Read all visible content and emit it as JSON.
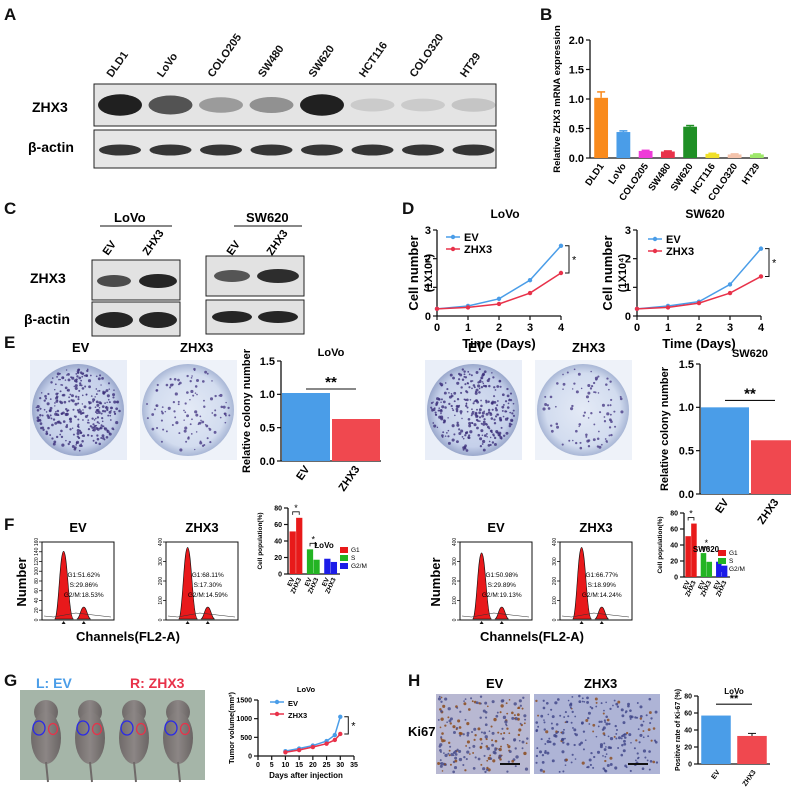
{
  "panel_letters": [
    "A",
    "B",
    "C",
    "D",
    "E",
    "F",
    "G",
    "H"
  ],
  "a": {
    "lanes": [
      "DLD1",
      "LoVo",
      "COLO205",
      "SW480",
      "SW620",
      "HCT116",
      "COLO320",
      "HT29"
    ],
    "rows": [
      "ZHX3",
      "β-actin"
    ],
    "zhx3_intensity": [
      0.95,
      0.7,
      0.35,
      0.4,
      0.95,
      0.1,
      0.08,
      0.15
    ]
  },
  "chart_data": [
    {
      "id": "B",
      "type": "bar",
      "categories": [
        "DLD1",
        "LoVo",
        "COLO205",
        "SW480",
        "SW620",
        "HCT116",
        "COLO320",
        "HT29"
      ],
      "values": [
        1.02,
        0.44,
        0.12,
        0.11,
        0.53,
        0.07,
        0.06,
        0.06
      ],
      "errors": [
        0.1,
        0.02,
        0.01,
        0.01,
        0.02,
        0.01,
        0.01,
        0.01
      ],
      "colors": [
        "#f98a1c",
        "#4a9de8",
        "#ee3bd8",
        "#e8324a",
        "#1f8f25",
        "#f0e02a",
        "#f4c3ab",
        "#9ee86a"
      ],
      "ylabel": "Relative ZHX3 mRNA expression",
      "yticks": [
        "0.0",
        "0.5",
        "1.0",
        "1.5",
        "2.0"
      ],
      "ylim": [
        0,
        2
      ]
    },
    {
      "id": "D1",
      "type": "line",
      "title": "LoVo",
      "x": [
        0,
        1,
        2,
        3,
        4
      ],
      "series": [
        {
          "name": "EV",
          "values": [
            0.25,
            0.35,
            0.6,
            1.25,
            2.45
          ],
          "color": "#4a9de8"
        },
        {
          "name": "ZHX3",
          "values": [
            0.25,
            0.3,
            0.42,
            0.8,
            1.5
          ],
          "color": "#e8324a"
        }
      ],
      "xticks": [
        "0",
        "1",
        "2",
        "3",
        "4"
      ],
      "yticks": [
        "0",
        "1",
        "2",
        "3"
      ],
      "xlabel": "Time (Days)",
      "ylabel": "Cell number",
      "ylabel2": "(1X10⁴)",
      "xlim": [
        0,
        4
      ],
      "ylim": [
        0,
        3
      ],
      "sig": "*"
    },
    {
      "id": "D2",
      "type": "line",
      "title": "SW620",
      "x": [
        0,
        1,
        2,
        3,
        4
      ],
      "series": [
        {
          "name": "EV",
          "values": [
            0.25,
            0.35,
            0.5,
            1.1,
            2.35
          ],
          "color": "#4a9de8"
        },
        {
          "name": "ZHX3",
          "values": [
            0.25,
            0.3,
            0.45,
            0.8,
            1.38
          ],
          "color": "#e8324a"
        }
      ],
      "xticks": [
        "0",
        "1",
        "2",
        "3",
        "4"
      ],
      "yticks": [
        "0",
        "1",
        "2",
        "3"
      ],
      "xlabel": "Time (Days)",
      "ylabel": "Cell number",
      "ylabel2": "(1X10⁴)",
      "xlim": [
        0,
        4
      ],
      "ylim": [
        0,
        3
      ],
      "sig": "*"
    },
    {
      "id": "E1",
      "type": "bar",
      "title": "LoVo",
      "categories": [
        "EV",
        "ZHX3"
      ],
      "values": [
        1.02,
        0.63
      ],
      "colors": [
        "#4a9de8",
        "#f0484f"
      ],
      "ylabel": "Relative colony number",
      "yticks": [
        "0.0",
        "0.5",
        "1.0",
        "1.5"
      ],
      "ylim": [
        0,
        1.5
      ],
      "sig": "**"
    },
    {
      "id": "E2",
      "type": "bar",
      "title": "SW620",
      "categories": [
        "EV",
        "ZHX3"
      ],
      "values": [
        1.0,
        0.62
      ],
      "colors": [
        "#4a9de8",
        "#f0484f"
      ],
      "ylabel": "Relative colony number",
      "yticks": [
        "0.0",
        "0.5",
        "1.0",
        "1.5"
      ],
      "ylim": [
        0,
        1.5
      ],
      "sig": "**"
    },
    {
      "id": "F1",
      "type": "bar",
      "title": "LoVo",
      "groups": [
        "G1",
        "S",
        "G2/M"
      ],
      "categories": [
        "EV",
        "ZHX3"
      ],
      "values": [
        [
          51.6,
          68.1
        ],
        [
          29.9,
          17.3
        ],
        [
          18.5,
          14.6
        ]
      ],
      "colors": [
        "#e81a1a",
        "#23b423",
        "#1c1ce8"
      ],
      "ylabel": "Cell population(%)",
      "yticks": [
        "0",
        "20",
        "40",
        "60",
        "80"
      ],
      "ylim": [
        0,
        80
      ],
      "sig": [
        "*",
        "*"
      ]
    },
    {
      "id": "F2",
      "type": "bar",
      "title": "SW620",
      "groups": [
        "G1",
        "S",
        "G2/M"
      ],
      "categories": [
        "EV",
        "ZHX3"
      ],
      "values": [
        [
          51.0,
          66.8
        ],
        [
          29.9,
          19.0
        ],
        [
          19.1,
          14.2
        ]
      ],
      "colors": [
        "#e81a1a",
        "#23b423",
        "#1c1ce8"
      ],
      "ylabel": "Cell population(%)",
      "yticks": [
        "0",
        "20",
        "40",
        "60",
        "80"
      ],
      "ylim": [
        0,
        80
      ],
      "sig": [
        "*",
        "*"
      ]
    },
    {
      "id": "G",
      "type": "line",
      "title": "LoVo",
      "x": [
        10,
        15,
        20,
        25,
        28,
        30
      ],
      "series": [
        {
          "name": "EV",
          "values": [
            130,
            200,
            280,
            400,
            560,
            1050
          ],
          "color": "#4a9de8"
        },
        {
          "name": "ZHX3",
          "values": [
            100,
            160,
            240,
            330,
            430,
            590
          ],
          "color": "#e8324a"
        }
      ],
      "xticks": [
        "0",
        "5",
        "10",
        "15",
        "20",
        "25",
        "30",
        "35"
      ],
      "yticks": [
        "0",
        "500",
        "1000",
        "1500"
      ],
      "xlabel": "Days after injection",
      "ylabel": "Tumor volume(mm³)",
      "xlim": [
        0,
        35
      ],
      "ylim": [
        0,
        1500
      ],
      "sig": "*"
    },
    {
      "id": "H",
      "type": "bar",
      "title": "LoVo",
      "categories": [
        "EV",
        "ZHX3"
      ],
      "values": [
        57,
        33
      ],
      "errors": [
        0,
        3
      ],
      "colors": [
        "#4a9de8",
        "#f0484f"
      ],
      "ylabel": "Positive rate of Ki-67 (%)",
      "yticks": [
        "0",
        "20",
        "40",
        "60",
        "80"
      ],
      "ylim": [
        0,
        80
      ],
      "sig": "**"
    }
  ],
  "c": {
    "lovo": "LoVo",
    "sw620": "SW620",
    "lanes": [
      "EV",
      "ZHX3"
    ],
    "rows": [
      "ZHX3",
      "β-actin"
    ]
  },
  "e": {
    "labels": [
      "EV",
      "ZHX3"
    ]
  },
  "f": {
    "xlabel": "Channels(FL2-A)",
    "ylabel": "Number",
    "lovo": {
      "ev_title": "EV",
      "zhx3_title": "ZHX3",
      "ev_stats": [
        "G1:51.62%",
        "S:29.86%",
        "G2/M:18.53%"
      ],
      "zhx3_stats": [
        "G1:68.11%",
        "S:17.30%",
        "G2/M:14.59%"
      ],
      "ev_yticks": [
        "0",
        "20",
        "40",
        "60",
        "80",
        "100",
        "120",
        "140",
        "160"
      ],
      "zhx3_yticks": [
        "0",
        "100",
        "200",
        "300",
        "400"
      ]
    },
    "sw620": {
      "ev_title": "EV",
      "zhx3_title": "ZHX3",
      "ev_stats": [
        "G1:50.98%",
        "S:29.89%",
        "G2/M:19.13%"
      ],
      "zhx3_stats": [
        "G1:66.77%",
        "S:18.99%",
        "G2/M:14.24%"
      ],
      "ev_yticks": [
        "0",
        "100",
        "200",
        "300",
        "400"
      ],
      "zhx3_yticks": [
        "0",
        "100",
        "200",
        "300",
        "400"
      ]
    }
  },
  "g": {
    "label_ev": "L: EV",
    "label_zhx3": "R: ZHX3"
  },
  "h": {
    "ev": "EV",
    "zhx3": "ZHX3",
    "row": "Ki67"
  }
}
